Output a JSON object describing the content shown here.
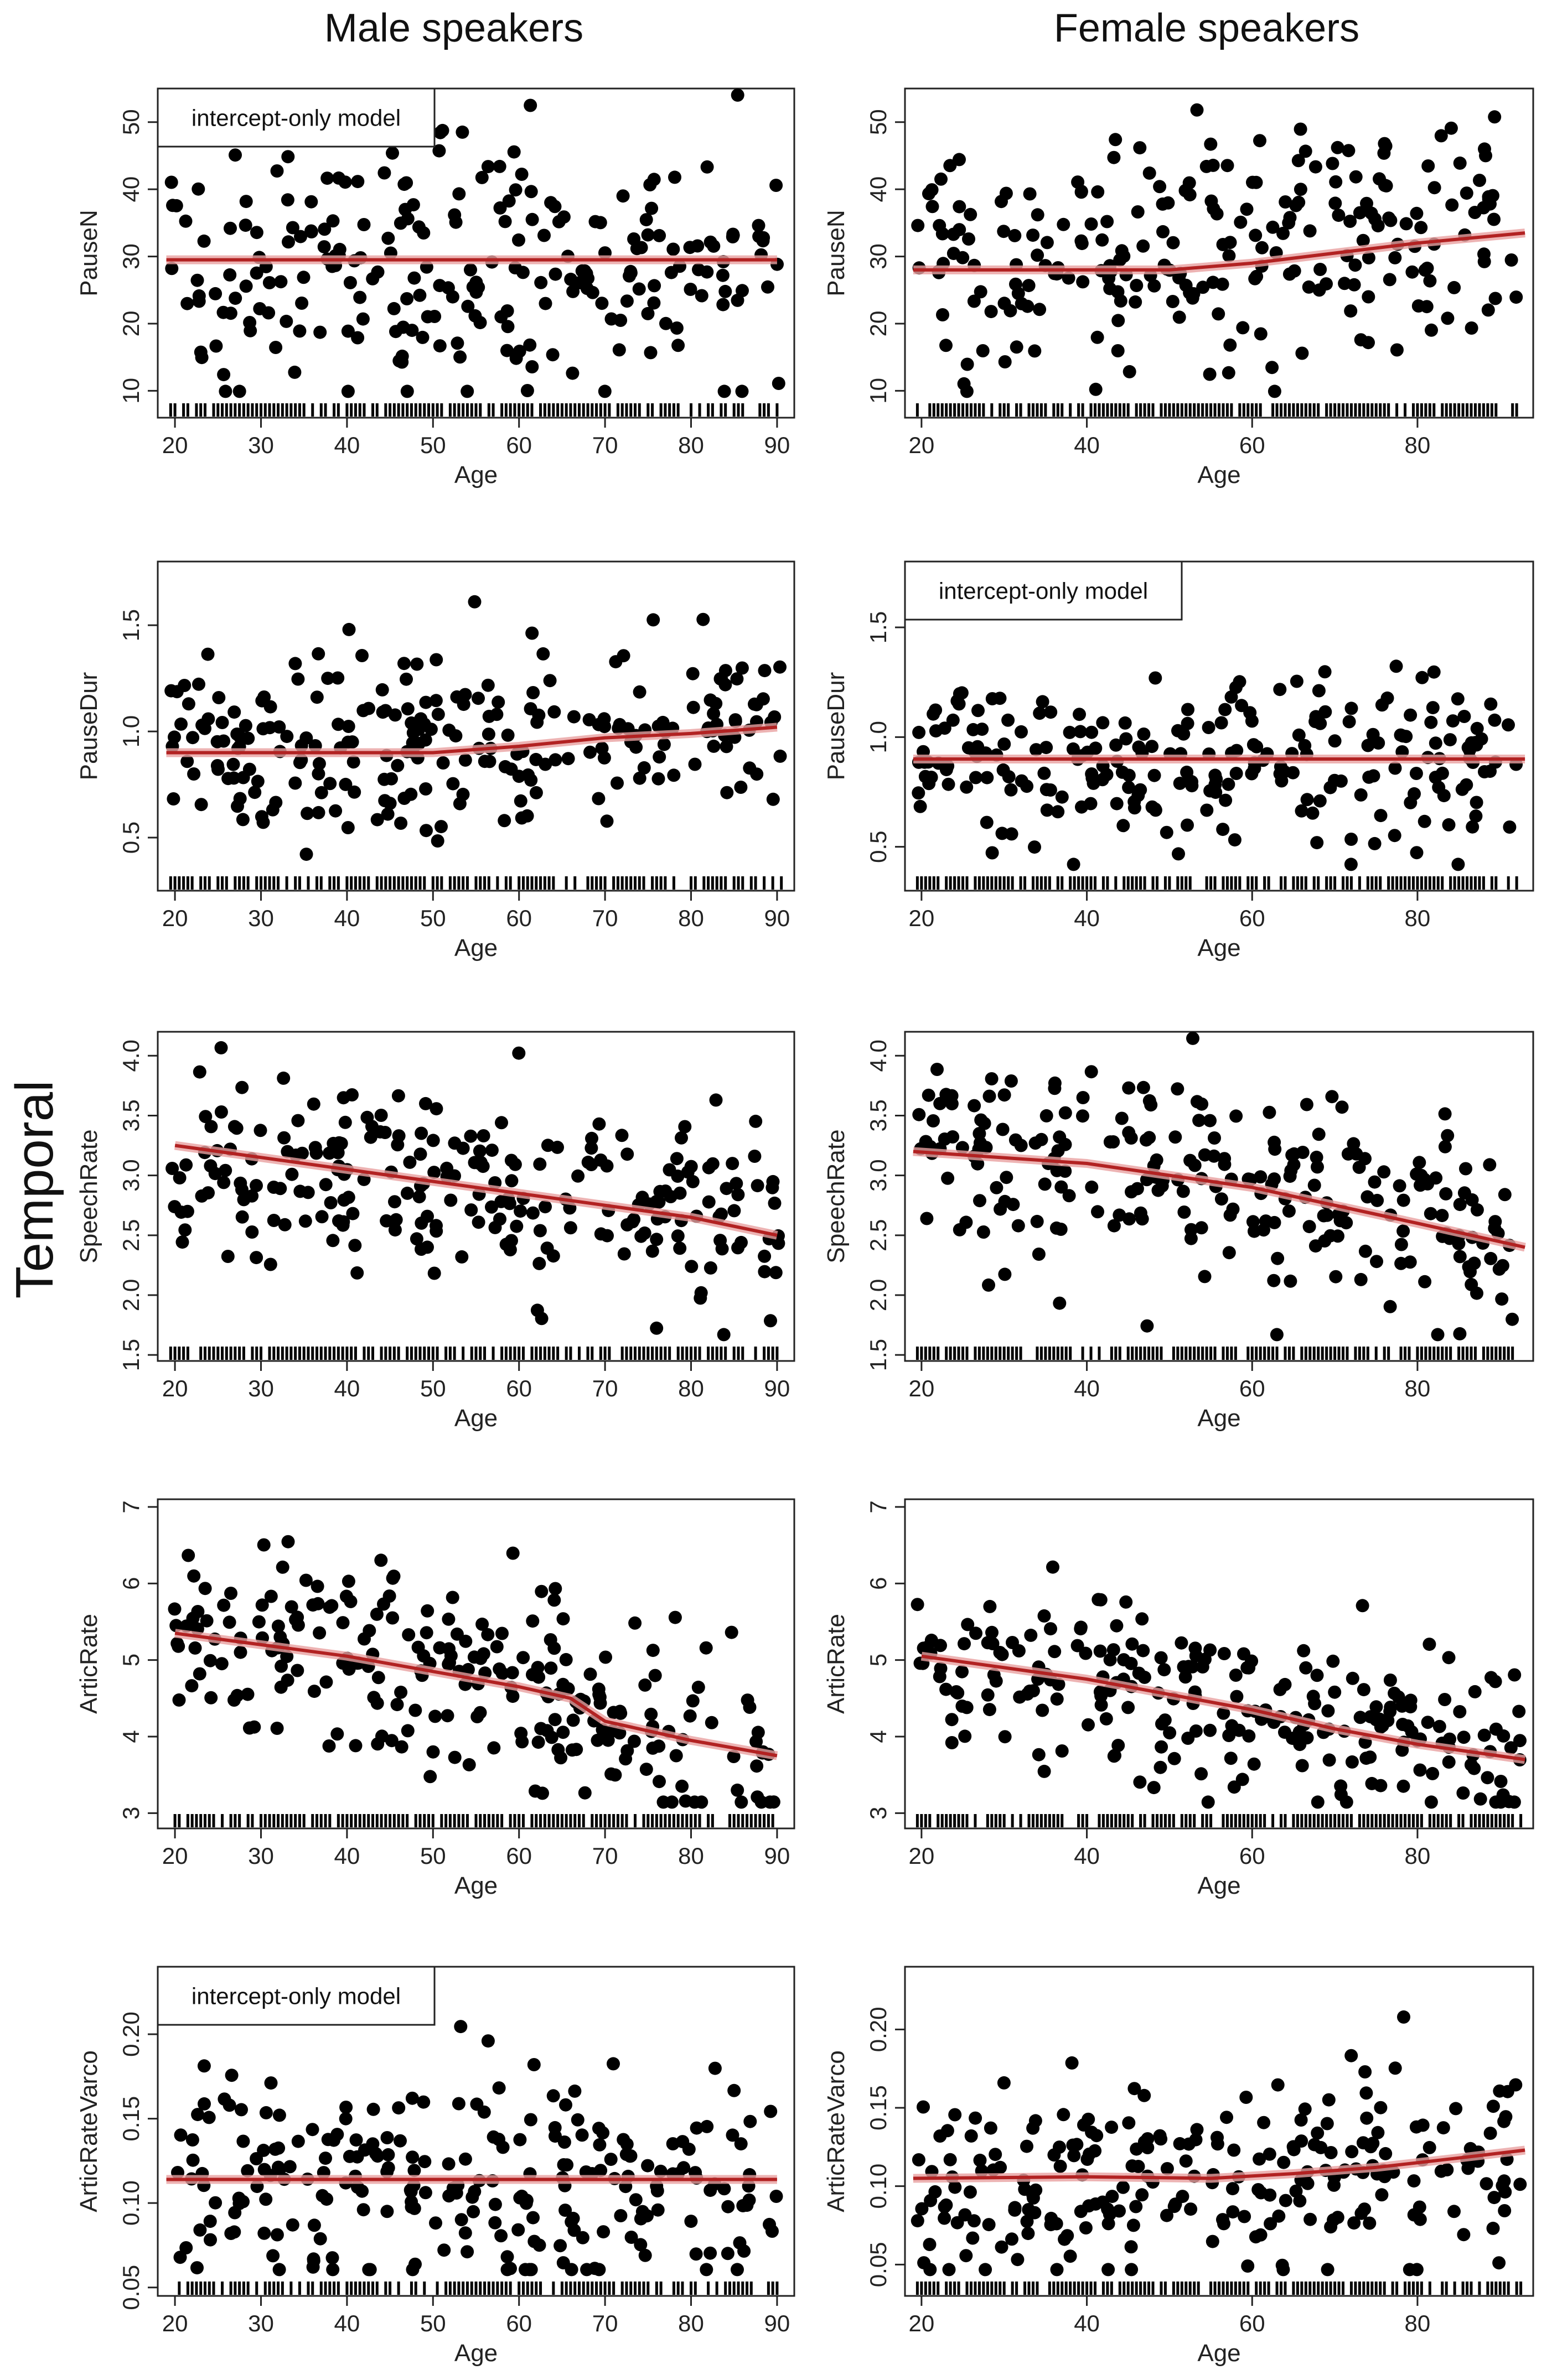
{
  "figure": {
    "col_titles": [
      "Male speakers",
      "Female speakers"
    ],
    "row_title": "Temporal"
  },
  "colors": {
    "points": "#000000",
    "fit": "#b22222",
    "fit_band": "#e8a0a0",
    "axes": "#222222"
  },
  "chart_data": [
    {
      "id": "male-pausen",
      "type": "scatter",
      "sex": "Male",
      "xlabel": "Age",
      "ylabel": "PauseN",
      "xlim": [
        18,
        92
      ],
      "ylim": [
        6,
        55
      ],
      "xticks": [
        20,
        30,
        40,
        50,
        60,
        70,
        80,
        90
      ],
      "yticks": [
        10,
        20,
        30,
        40,
        50
      ],
      "legend": "intercept-only model",
      "fit": [
        [
          19,
          29.5
        ],
        [
          90,
          29.5
        ]
      ],
      "n_points": 240,
      "seed": 101,
      "y_mean": 29,
      "y_sd": 10
    },
    {
      "id": "female-pausen",
      "type": "scatter",
      "sex": "Female",
      "xlabel": "Age",
      "ylabel": "PauseN",
      "xlim": [
        18,
        94
      ],
      "ylim": [
        6,
        55
      ],
      "xticks": [
        20,
        40,
        60,
        80
      ],
      "yticks": [
        10,
        20,
        30,
        40,
        50
      ],
      "legend": "",
      "fit": [
        [
          19,
          28
        ],
        [
          35,
          28
        ],
        [
          50,
          28
        ],
        [
          60,
          29
        ],
        [
          70,
          30.5
        ],
        [
          80,
          32
        ],
        [
          93,
          33.5
        ]
      ],
      "n_points": 240,
      "seed": 202,
      "y_mean": 29,
      "y_sd": 9
    },
    {
      "id": "male-pausedur",
      "type": "scatter",
      "sex": "Male",
      "xlabel": "Age",
      "ylabel": "PauseDur",
      "xlim": [
        18,
        92
      ],
      "ylim": [
        0.25,
        1.8
      ],
      "xticks": [
        20,
        30,
        40,
        50,
        60,
        70,
        80,
        90
      ],
      "yticks": [
        0.5,
        1.0,
        1.5
      ],
      "legend": "",
      "fit": [
        [
          19,
          0.9
        ],
        [
          50,
          0.9
        ],
        [
          60,
          0.93
        ],
        [
          70,
          0.97
        ],
        [
          80,
          0.99
        ],
        [
          90,
          1.02
        ]
      ],
      "n_points": 240,
      "seed": 303,
      "y_mean": 0.92,
      "y_sd": 0.2
    },
    {
      "id": "female-pausedur",
      "type": "scatter",
      "sex": "Female",
      "xlabel": "Age",
      "ylabel": "PauseDur",
      "xlim": [
        18,
        94
      ],
      "ylim": [
        0.3,
        1.8
      ],
      "xticks": [
        20,
        40,
        60,
        80
      ],
      "yticks": [
        0.5,
        1.0,
        1.5
      ],
      "legend": "intercept-only model",
      "fit": [
        [
          19,
          0.9
        ],
        [
          93,
          0.9
        ]
      ],
      "n_points": 240,
      "seed": 404,
      "y_mean": 0.9,
      "y_sd": 0.2
    },
    {
      "id": "male-speechrate",
      "type": "scatter",
      "sex": "Male",
      "xlabel": "Age",
      "ylabel": "SpeechRate",
      "xlim": [
        18,
        92
      ],
      "ylim": [
        1.45,
        4.2
      ],
      "xticks": [
        20,
        30,
        40,
        50,
        60,
        70,
        80,
        90
      ],
      "yticks": [
        1.5,
        2.0,
        2.5,
        3.0,
        3.5,
        4.0
      ],
      "legend": "",
      "fit": [
        [
          20,
          3.25
        ],
        [
          30,
          3.15
        ],
        [
          40,
          3.05
        ],
        [
          50,
          2.95
        ],
        [
          60,
          2.85
        ],
        [
          70,
          2.75
        ],
        [
          80,
          2.65
        ],
        [
          90,
          2.5
        ]
      ],
      "n_points": 240,
      "seed": 505,
      "y_mean": 0,
      "y_sd": 0.42
    },
    {
      "id": "female-speechrate",
      "type": "scatter",
      "sex": "Female",
      "xlabel": "Age",
      "ylabel": "SpeechRate",
      "xlim": [
        18,
        94
      ],
      "ylim": [
        1.45,
        4.2
      ],
      "xticks": [
        20,
        40,
        60,
        80
      ],
      "yticks": [
        1.5,
        2.0,
        2.5,
        3.0,
        3.5,
        4.0
      ],
      "legend": "",
      "fit": [
        [
          19,
          3.2
        ],
        [
          40,
          3.1
        ],
        [
          50,
          3.0
        ],
        [
          60,
          2.9
        ],
        [
          70,
          2.75
        ],
        [
          80,
          2.6
        ],
        [
          93,
          2.4
        ]
      ],
      "n_points": 240,
      "seed": 606,
      "y_mean": 0,
      "y_sd": 0.42
    },
    {
      "id": "male-articrate",
      "type": "scatter",
      "sex": "Male",
      "xlabel": "Age",
      "ylabel": "ArticRate",
      "xlim": [
        18,
        92
      ],
      "ylim": [
        2.8,
        7.1
      ],
      "xticks": [
        20,
        30,
        40,
        50,
        60,
        70,
        80,
        90
      ],
      "yticks": [
        3,
        4,
        5,
        6,
        7
      ],
      "legend": "",
      "fit": [
        [
          20,
          5.35
        ],
        [
          30,
          5.2
        ],
        [
          40,
          5.05
        ],
        [
          50,
          4.85
        ],
        [
          60,
          4.65
        ],
        [
          66,
          4.5
        ],
        [
          70,
          4.2
        ],
        [
          80,
          3.95
        ],
        [
          90,
          3.75
        ]
      ],
      "n_points": 240,
      "seed": 707,
      "y_mean": 0,
      "y_sd": 0.65
    },
    {
      "id": "female-articrate",
      "type": "scatter",
      "sex": "Female",
      "xlabel": "Age",
      "ylabel": "ArticRate",
      "xlim": [
        18,
        94
      ],
      "ylim": [
        2.8,
        7.1
      ],
      "xticks": [
        20,
        40,
        60,
        80
      ],
      "yticks": [
        3,
        4,
        5,
        6,
        7
      ],
      "legend": "",
      "fit": [
        [
          20,
          5.05
        ],
        [
          30,
          4.9
        ],
        [
          40,
          4.75
        ],
        [
          50,
          4.55
        ],
        [
          60,
          4.35
        ],
        [
          70,
          4.1
        ],
        [
          80,
          3.9
        ],
        [
          93,
          3.7
        ]
      ],
      "n_points": 240,
      "seed": 808,
      "y_mean": 0,
      "y_sd": 0.55
    },
    {
      "id": "male-articratevarco",
      "type": "scatter",
      "sex": "Male",
      "xlabel": "Age",
      "ylabel": "ArticRateVarco",
      "xlim": [
        18,
        92
      ],
      "ylim": [
        0.045,
        0.24
      ],
      "xticks": [
        20,
        30,
        40,
        50,
        60,
        70,
        80,
        90
      ],
      "yticks": [
        0.05,
        0.1,
        0.15,
        0.2
      ],
      "legend": "intercept-only model",
      "fit": [
        [
          19,
          0.114
        ],
        [
          90,
          0.114
        ]
      ],
      "n_points": 240,
      "seed": 909,
      "y_mean": 0.112,
      "y_sd": 0.035
    },
    {
      "id": "female-articratevarco",
      "type": "scatter",
      "sex": "Female",
      "xlabel": "Age",
      "ylabel": "ArticRateVarco",
      "xlim": [
        18,
        94
      ],
      "ylim": [
        0.03,
        0.24
      ],
      "xticks": [
        20,
        40,
        60,
        80
      ],
      "yticks": [
        0.05,
        0.1,
        0.15,
        0.2
      ],
      "legend": "",
      "fit": [
        [
          19,
          0.105
        ],
        [
          40,
          0.106
        ],
        [
          55,
          0.105
        ],
        [
          65,
          0.108
        ],
        [
          75,
          0.112
        ],
        [
          85,
          0.118
        ],
        [
          93,
          0.123
        ]
      ],
      "n_points": 240,
      "seed": 1010,
      "y_mean": 0.104,
      "y_sd": 0.03
    }
  ]
}
